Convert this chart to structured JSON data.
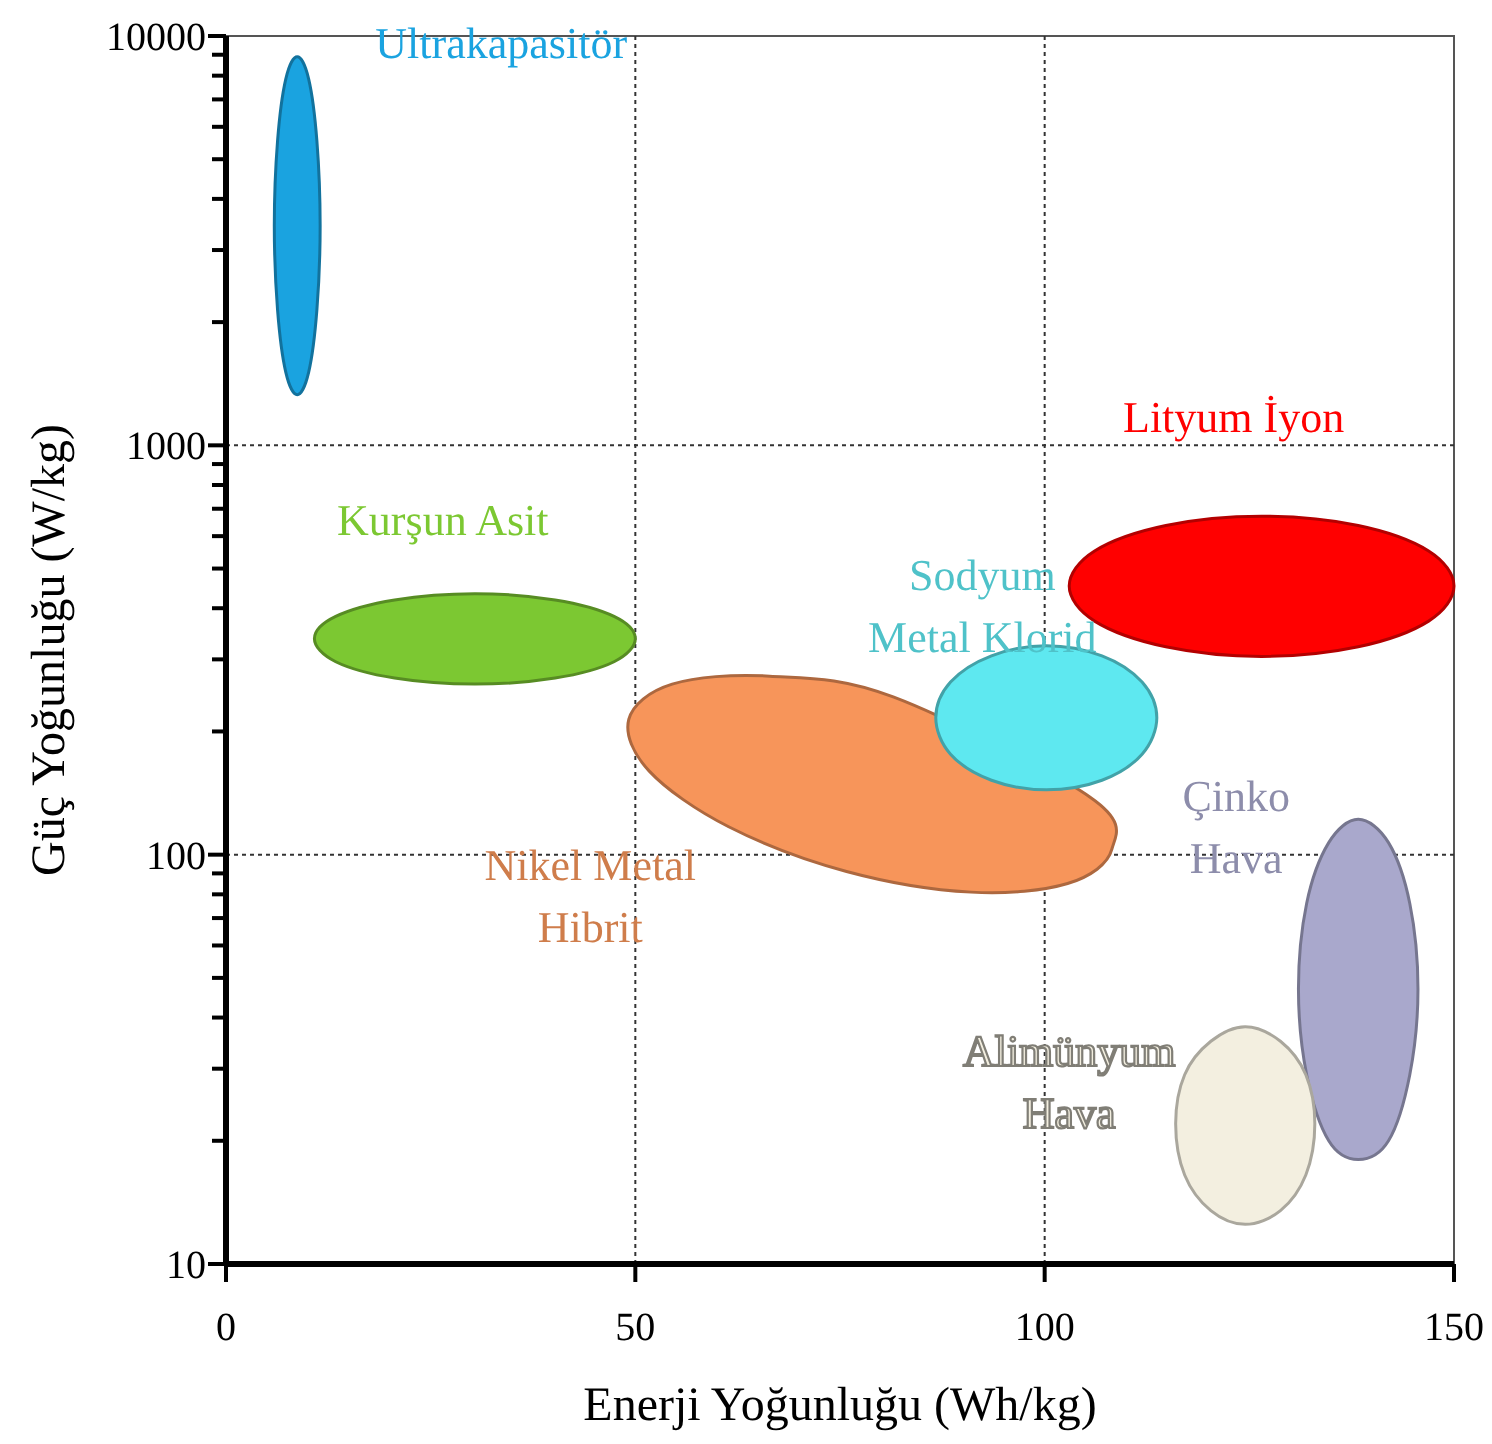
{
  "chart_data": {
    "type": "area",
    "xlabel": "Enerji Yoğunluğu (Wh/kg)",
    "ylabel": "Güç Yoğunluğu (W/kg)",
    "xlim": [
      0,
      150
    ],
    "ylim": [
      10,
      10000
    ],
    "log": "y",
    "grid": true,
    "xticks": [
      0,
      50,
      100,
      150
    ],
    "yticks": [
      10,
      {
        "value": 20,
        "label": null
      },
      {
        "value": 30,
        "label": null
      },
      {
        "value": 40,
        "label": null
      },
      {
        "value": 50,
        "label": null
      },
      {
        "value": 60,
        "label": null
      },
      {
        "value": 70,
        "label": null
      },
      {
        "value": 80,
        "label": null
      },
      {
        "value": 90,
        "label": null
      },
      100,
      {
        "value": 200,
        "label": null
      },
      {
        "value": 300,
        "label": null
      },
      {
        "value": 400,
        "label": null
      },
      {
        "value": 500,
        "label": null
      },
      {
        "value": 600,
        "label": null
      },
      {
        "value": 700,
        "label": null
      },
      {
        "value": 800,
        "label": null
      },
      {
        "value": 900,
        "label": null
      },
      1000,
      {
        "value": 2000,
        "label": null
      },
      {
        "value": 3000,
        "label": null
      },
      {
        "value": 4000,
        "label": null
      },
      {
        "value": 5000,
        "label": null
      },
      {
        "value": 6000,
        "label": null
      },
      {
        "value": 7000,
        "label": null
      },
      {
        "value": 8000,
        "label": null
      },
      {
        "value": 9000,
        "label": null
      },
      10000
    ],
    "series": [
      {
        "name": "Ultrakapasitör",
        "color": "#1aa3e0",
        "x": [
          11.5,
          11.1,
          10.1,
          8.7,
          7.3,
          6.3,
          5.9,
          6.3,
          7.3,
          8.7,
          10.1,
          11.1
        ],
        "values": [
          3440,
          5550,
          7850,
          8900,
          7850,
          5550,
          3440,
          2140,
          1510,
          1330,
          1510,
          2140
        ]
      },
      {
        "name": "Kurşun Asit",
        "color": "#7cc832",
        "x": [
          50,
          47.4,
          40.2,
          30.4,
          20.6,
          13.4,
          10.8,
          13.4,
          20.6,
          30.4,
          40.2,
          47.4
        ],
        "values": [
          337,
          382,
          419,
          434,
          419,
          382,
          337,
          296,
          270,
          261,
          270,
          296
        ]
      },
      {
        "name": "Lityum İyon",
        "color": "#ff0000",
        "x": [
          150,
          146.9,
          138.3,
          126.5,
          114.8,
          106.1,
          103,
          106.1,
          114.8,
          126.5,
          138.3,
          146.9
        ],
        "values": [
          453,
          552,
          637,
          671,
          637,
          552,
          453,
          372,
          322,
          305,
          322,
          372
        ]
      },
      {
        "name": "Nikel Metal Hibrit",
        "color": "#f7955a",
        "x": [
          108.2,
          102.8,
          91,
          75.8,
          61.4,
          51.7,
          49.2,
          54.5,
          66.4,
          81.5,
          95.9,
          105.6
        ],
        "values": [
          103,
          85,
          81,
          91,
          117,
          160,
          214,
          261,
          273,
          243,
          null,
          138
        ]
      },
      {
        "name": "Sodyum Metal Klorid",
        "color": "#5ee8f0",
        "x": [
          113.7,
          111.9,
          107,
          100.2,
          93.5,
          88.5,
          86.7,
          88.5,
          93.5,
          100.2,
          107,
          111.9
        ],
        "values": [
          216,
          264,
          306,
          324,
          306,
          264,
          216,
          176,
          152,
          144,
          152,
          176
        ]
      },
      {
        "name": "Çinko Hava",
        "color": "#a9a8cc",
        "x": [
          145.6,
          144.6,
          142,
          138.3,
          134.7,
          132,
          131,
          132,
          134.7,
          138.3,
          142,
          144.6
        ],
        "values": [
          47,
          76,
          107,
          122,
          107,
          76,
          47,
          29,
          20,
          18,
          20,
          29
        ]
      },
      {
        "name": "Alimünyum Hava",
        "color": "#f3efe0",
        "x": [
          133,
          131.9,
          128.8,
          124.5,
          120.3,
          117.1,
          116,
          117.1,
          120.3,
          124.5,
          128.8,
          131.9
        ],
        "values": [
          22,
          29,
          35,
          38,
          35,
          29,
          22,
          16.5,
          13.5,
          12.5,
          13.5,
          16.5
        ]
      }
    ]
  }
}
